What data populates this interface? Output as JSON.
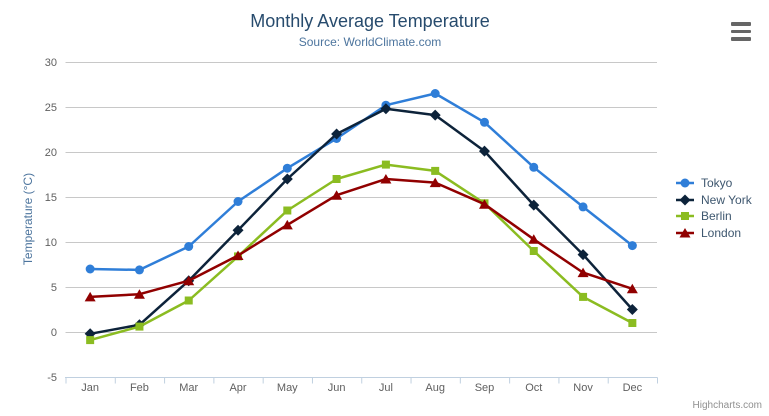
{
  "chart_data": {
    "type": "line",
    "title": "Monthly Average Temperature",
    "subtitle": "Source: WorldClimate.com",
    "xlabel": "",
    "ylabel": "Temperature (°C)",
    "categories": [
      "Jan",
      "Feb",
      "Mar",
      "Apr",
      "May",
      "Jun",
      "Jul",
      "Aug",
      "Sep",
      "Oct",
      "Nov",
      "Dec"
    ],
    "ylim": [
      -5,
      30
    ],
    "ytick_step": 5,
    "grid": true,
    "legend_position": "right",
    "series": [
      {
        "name": "Tokyo",
        "color": "#2f7ed8",
        "marker": "circle",
        "values": [
          7.0,
          6.9,
          9.5,
          14.5,
          18.2,
          21.5,
          25.2,
          26.5,
          23.3,
          18.3,
          13.9,
          9.6
        ]
      },
      {
        "name": "New York",
        "color": "#0d233a",
        "marker": "diamond",
        "values": [
          -0.2,
          0.8,
          5.7,
          11.3,
          17.0,
          22.0,
          24.8,
          24.1,
          20.1,
          14.1,
          8.6,
          2.5
        ]
      },
      {
        "name": "Berlin",
        "color": "#8bbc21",
        "marker": "square",
        "values": [
          -0.9,
          0.6,
          3.5,
          8.4,
          13.5,
          17.0,
          18.6,
          17.9,
          14.3,
          9.0,
          3.9,
          1.0
        ]
      },
      {
        "name": "London",
        "color": "#910000",
        "marker": "triangle",
        "values": [
          3.9,
          4.2,
          5.7,
          8.5,
          11.9,
          15.2,
          17.0,
          16.6,
          14.2,
          10.3,
          6.6,
          4.8
        ]
      }
    ]
  },
  "credits_label": "Highcharts.com",
  "icons": {
    "export_menu": "hamburger-icon"
  },
  "colors": {
    "title": "#274b6d",
    "subtitle": "#4d759e",
    "axis_title": "#4d759e",
    "axis_label": "#606060",
    "legend_text": "#3e576f",
    "gridline": "#c8c8c8",
    "axis_line": "#c0d0e0",
    "tick": "#c0d0e0",
    "credits": "#909090",
    "menu_icon": "#666666",
    "background": "#ffffff"
  }
}
